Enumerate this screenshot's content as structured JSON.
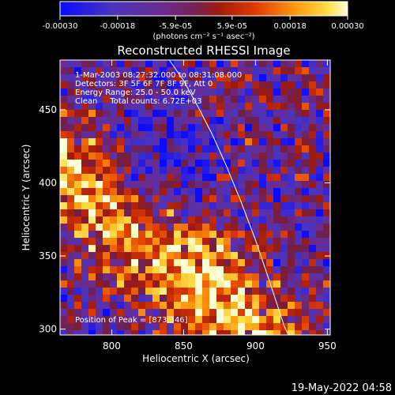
{
  "chart_data": {
    "type": "heatmap",
    "title": "Reconstructed RHESSI Image",
    "xlabel": "Heliocentric X (arcsec)",
    "ylabel": "Heliocentric Y (arcsec)",
    "xlim": [
      764,
      952
    ],
    "ylim": [
      296,
      484
    ],
    "x_ticks": [
      800,
      850,
      900,
      950
    ],
    "y_ticks": [
      300,
      350,
      400,
      450
    ],
    "colorbar": {
      "range": [
        -0.0003,
        0.0003
      ],
      "tick_values": [
        -0.0003,
        -0.00018,
        -5.9e-05,
        5.9e-05,
        0.00018,
        0.0003
      ],
      "tick_labels": [
        "-0.00030",
        "-0.00018",
        "-5.9e-05",
        "5.9e-05",
        "0.00018",
        "0.00030"
      ],
      "unit_label": "(photons cm⁻² s⁻¹ asec⁻²)",
      "colors": [
        "#0a0aff",
        "#5533aa",
        "#702a8c",
        "#8a2020",
        "#cc2200",
        "#ff6a00",
        "#ffcc33",
        "#ffffcc"
      ]
    },
    "annotations": {
      "time_range": "1-Mar-2003 08:27:32.000 to 08:31:08.000",
      "detectors": "Detectors: 3F 5F 6F 7F 8F 9F, Att 0",
      "energy_range": "Energy Range: 25.0 - 50.0 keV",
      "clean_counts": "Clean     Total counts: 6.72E+03",
      "peak": "Position of Peak = [873,346]"
    },
    "peak_position": [
      873,
      346
    ],
    "limb_curve": [
      [
        840,
        484
      ],
      [
        850,
        470
      ],
      [
        860,
        452
      ],
      [
        870,
        433
      ],
      [
        880,
        411
      ],
      [
        890,
        387
      ],
      [
        900,
        361
      ],
      [
        910,
        332
      ],
      [
        920,
        302
      ],
      [
        923,
        296
      ]
    ],
    "grid": false
  },
  "footer": {
    "timestamp": "19-May-2022 04:58"
  }
}
